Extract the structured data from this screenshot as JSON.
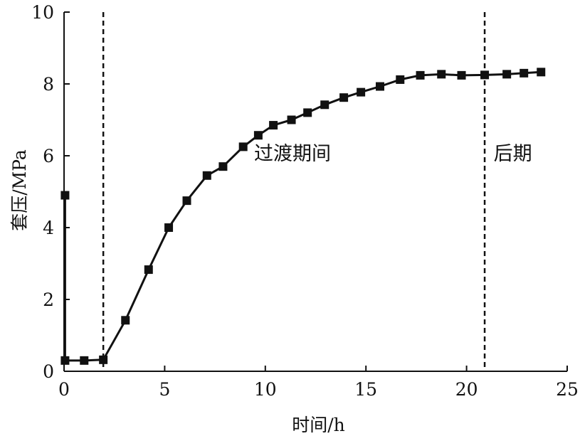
{
  "chart_data": {
    "type": "line",
    "title": "",
    "xlabel": "时间/h",
    "ylabel": "套压/MPa",
    "xlim": [
      0,
      25
    ],
    "ylim": [
      0,
      10
    ],
    "xticks": [
      0,
      5,
      10,
      15,
      20,
      25
    ],
    "yticks": [
      0,
      2,
      4,
      6,
      8,
      10
    ],
    "xtick_labels": [
      "0",
      "5",
      "10",
      "15",
      "20",
      "25"
    ],
    "ytick_labels": [
      "0",
      "2",
      "4",
      "6",
      "8",
      "10"
    ],
    "grid": false,
    "legend": "none",
    "series": [
      {
        "color": "#111111",
        "marker": "square",
        "x": [
          0.05,
          0.05,
          1.0,
          1.95,
          3.05,
          4.2,
          5.2,
          6.1,
          7.1,
          7.9,
          8.9,
          9.65,
          10.4,
          11.3,
          12.1,
          12.95,
          13.9,
          14.75,
          15.7,
          16.7,
          17.7,
          18.75,
          19.75,
          20.9,
          22.0,
          22.85,
          23.7
        ],
        "y": [
          4.9,
          0.3,
          0.3,
          0.32,
          1.42,
          2.83,
          4.0,
          4.75,
          5.45,
          5.7,
          6.25,
          6.57,
          6.85,
          7.0,
          7.2,
          7.42,
          7.62,
          7.77,
          7.93,
          8.12,
          8.24,
          8.27,
          8.24,
          8.25,
          8.27,
          8.3,
          8.33
        ]
      }
    ],
    "reference_lines": [
      {
        "axis": "x",
        "value": 1.95,
        "style": "dashed"
      },
      {
        "axis": "x",
        "value": 20.9,
        "style": "dashed"
      }
    ],
    "annotations": [
      {
        "text": "过渡期间",
        "x": 11.35,
        "y": 6.1
      },
      {
        "text": "后期",
        "x": 22.3,
        "y": 6.1
      }
    ]
  }
}
